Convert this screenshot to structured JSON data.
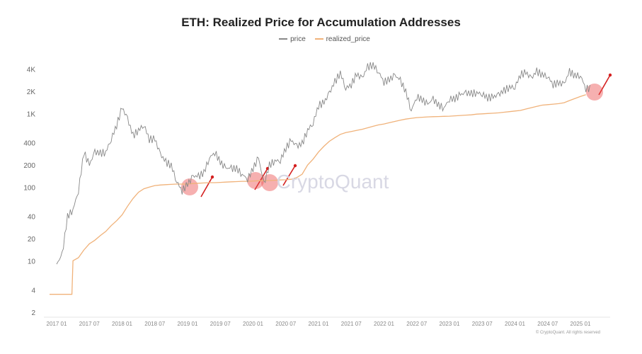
{
  "chart_data": {
    "type": "line",
    "title": "ETH: Realized Price for Accumulation Addresses",
    "yscale": "log",
    "ylim": [
      2,
      6000
    ],
    "yticks": [
      {
        "v": 2,
        "l": "2"
      },
      {
        "v": 4,
        "l": "4"
      },
      {
        "v": 10,
        "l": "10"
      },
      {
        "v": 20,
        "l": "20"
      },
      {
        "v": 40,
        "l": "40"
      },
      {
        "v": 100,
        "l": "100"
      },
      {
        "v": 200,
        "l": "200"
      },
      {
        "v": 400,
        "l": "400"
      },
      {
        "v": 1000,
        "l": "1K"
      },
      {
        "v": 2000,
        "l": "2K"
      },
      {
        "v": 4000,
        "l": "4K"
      }
    ],
    "xticks": [
      "2017 01",
      "2017 07",
      "2018 01",
      "2018 07",
      "2019 01",
      "2019 07",
      "2020 01",
      "2020 07",
      "2021 01",
      "2021 07",
      "2022 01",
      "2022 07",
      "2023 01",
      "2023 07",
      "2024 01",
      "2024 07",
      "2025 01"
    ],
    "x_start": "2017-01",
    "x_step": "month",
    "series": [
      {
        "name": "price",
        "color": "#888888",
        "values": [
          9,
          12,
          40,
          50,
          90,
          300,
          200,
          300,
          290,
          300,
          450,
          700,
          1200,
          850,
          500,
          600,
          700,
          450,
          450,
          280,
          220,
          200,
          120,
          90,
          110,
          140,
          140,
          160,
          250,
          300,
          220,
          180,
          180,
          180,
          150,
          130,
          180,
          250,
          110,
          200,
          230,
          230,
          340,
          430,
          360,
          390,
          600,
          740,
          1300,
          1400,
          1900,
          2700,
          3600,
          2200,
          2500,
          3400,
          3000,
          4300,
          4600,
          3700,
          2700,
          2900,
          3300,
          2800,
          2000,
          1100,
          1700,
          1550,
          1330,
          1570,
          1300,
          1200,
          1580,
          1600,
          1800,
          1900,
          1870,
          1930,
          1850,
          1650,
          1670,
          1800,
          2050,
          2300,
          2280,
          3400,
          3600,
          3000,
          3750,
          3400,
          3200,
          2500,
          2600,
          2500,
          3700,
          3300,
          3300,
          2200
        ]
      },
      {
        "name": "realized_price",
        "color": "#f0b27a",
        "values": [
          3.5,
          3.5,
          3.5,
          10,
          11,
          14,
          17,
          19,
          22,
          25,
          30,
          35,
          42,
          55,
          70,
          85,
          95,
          100,
          105,
          107,
          108,
          109,
          110,
          110,
          110,
          112,
          113,
          114,
          115,
          115,
          116,
          117,
          118,
          119,
          120,
          120,
          121,
          122,
          122,
          123,
          124,
          125,
          126,
          128,
          135,
          150,
          200,
          240,
          300,
          360,
          420,
          470,
          520,
          550,
          570,
          590,
          610,
          640,
          670,
          700,
          720,
          750,
          780,
          810,
          840,
          860,
          880,
          890,
          900,
          905,
          910,
          915,
          920,
          930,
          940,
          950,
          960,
          980,
          990,
          1000,
          1010,
          1020,
          1040,
          1060,
          1080,
          1100,
          1150,
          1200,
          1250,
          1300,
          1320,
          1340,
          1360,
          1400,
          1500,
          1600,
          1700,
          1800
        ]
      }
    ],
    "highlights": [
      "2019-01",
      "2020-01",
      "2020-03",
      "2025-02"
    ],
    "watermark": "CryptoQuant",
    "credit": "© CryptoQuant. All rights reserved"
  }
}
